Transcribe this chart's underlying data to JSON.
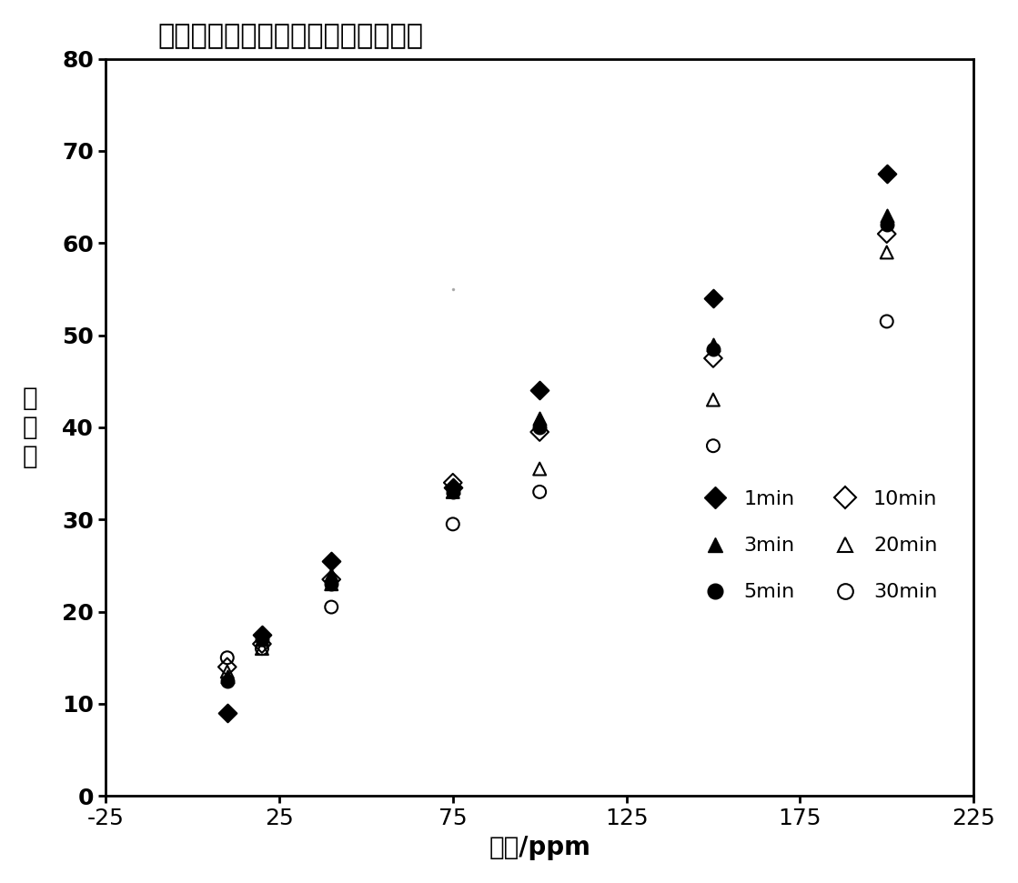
{
  "title": "不同显色时间下的标准溶液信号响应",
  "xlabel": "浓度/ppm",
  "ylabel": "灰\n度\n值",
  "xlim": [
    -25,
    225
  ],
  "ylim": [
    0,
    80
  ],
  "xticks": [
    -25,
    25,
    75,
    125,
    175,
    225
  ],
  "yticks": [
    0,
    10,
    20,
    30,
    40,
    50,
    60,
    70,
    80
  ],
  "series": {
    "1min": {
      "x": [
        10,
        20,
        40,
        75,
        100,
        150,
        200
      ],
      "y": [
        9,
        17.5,
        25.5,
        33.5,
        44,
        54,
        67.5
      ],
      "marker": "D",
      "filled": true,
      "color": "#000000",
      "size": 100,
      "label": "1min"
    },
    "3min": {
      "x": [
        10,
        20,
        40,
        75,
        100,
        150,
        200
      ],
      "y": [
        13,
        17,
        24,
        33.5,
        41,
        49,
        63
      ],
      "marker": "^",
      "filled": true,
      "color": "#000000",
      "size": 100,
      "label": "3min"
    },
    "5min": {
      "x": [
        10,
        20,
        40,
        75,
        100,
        150,
        200
      ],
      "y": [
        12.5,
        17,
        23,
        33,
        40,
        48.5,
        62
      ],
      "marker": "o",
      "filled": true,
      "color": "#000000",
      "size": 100,
      "label": "5min"
    },
    "10min": {
      "x": [
        10,
        20,
        40,
        75,
        100,
        150,
        200
      ],
      "y": [
        14,
        16.5,
        23.5,
        34,
        39.5,
        47.5,
        61
      ],
      "marker": "D",
      "filled": false,
      "color": "#000000",
      "size": 100,
      "label": "10min"
    },
    "20min": {
      "x": [
        10,
        20,
        40,
        75,
        100,
        150,
        200
      ],
      "y": [
        13.5,
        16,
        23,
        33,
        35.5,
        43,
        59
      ],
      "marker": "^",
      "filled": false,
      "color": "#000000",
      "size": 100,
      "label": "20min"
    },
    "30min": {
      "x": [
        10,
        20,
        40,
        75,
        100,
        150,
        200
      ],
      "y": [
        15,
        16,
        20.5,
        29.5,
        33,
        38,
        51.5
      ],
      "marker": "o",
      "filled": false,
      "color": "#000000",
      "size": 100,
      "label": "30min"
    }
  },
  "background_color": "#ffffff",
  "title_fontsize": 22,
  "axis_label_fontsize": 20,
  "tick_fontsize": 18,
  "legend_fontsize": 16
}
